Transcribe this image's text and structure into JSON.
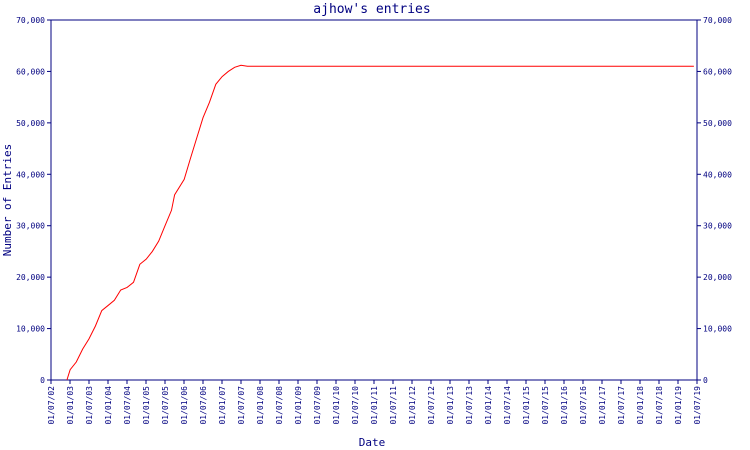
{
  "chart_data": {
    "type": "line",
    "title": "ajhow's entries",
    "xlabel": "Date",
    "ylabel": "Number of Entries",
    "ylim": [
      0,
      70000
    ],
    "yticks": [
      0,
      10000,
      20000,
      30000,
      40000,
      50000,
      60000,
      70000
    ],
    "ytick_labels": [
      "0",
      "10,000",
      "20,000",
      "30,000",
      "40,000",
      "50,000",
      "60,000",
      "70,000"
    ],
    "secondary_y_axis": true,
    "grid": false,
    "x_tick_labels": [
      "01/07/02",
      "01/01/03",
      "01/07/03",
      "01/01/04",
      "01/07/04",
      "01/01/05",
      "01/07/05",
      "01/01/06",
      "01/07/06",
      "01/01/07",
      "01/07/07",
      "01/01/08",
      "01/07/08",
      "01/01/09",
      "01/07/09",
      "01/01/10",
      "01/07/10",
      "01/01/11",
      "01/07/11",
      "01/01/12",
      "01/07/12",
      "01/01/13",
      "01/07/13",
      "01/01/14",
      "01/07/14",
      "01/01/15",
      "01/07/15",
      "01/01/16",
      "01/07/16",
      "01/01/17",
      "01/07/17",
      "01/01/18",
      "01/07/18",
      "01/01/19",
      "01/07/19"
    ],
    "series": [
      {
        "color": "#ff0000",
        "points": [
          [
            "2002-12-01",
            0
          ],
          [
            "2003-01-01",
            2000
          ],
          [
            "2003-03-01",
            3500
          ],
          [
            "2003-05-01",
            6000
          ],
          [
            "2003-07-01",
            8000
          ],
          [
            "2003-09-01",
            10500
          ],
          [
            "2003-11-01",
            13500
          ],
          [
            "2004-01-01",
            14500
          ],
          [
            "2004-03-01",
            15500
          ],
          [
            "2004-05-01",
            17500
          ],
          [
            "2004-07-01",
            18000
          ],
          [
            "2004-09-01",
            19000
          ],
          [
            "2004-11-01",
            22500
          ],
          [
            "2005-01-01",
            23500
          ],
          [
            "2005-03-01",
            25000
          ],
          [
            "2005-05-01",
            27000
          ],
          [
            "2005-07-01",
            30000
          ],
          [
            "2005-09-01",
            33000
          ],
          [
            "2005-10-01",
            36000
          ],
          [
            "2006-01-01",
            39000
          ],
          [
            "2006-03-01",
            43000
          ],
          [
            "2006-05-01",
            47000
          ],
          [
            "2006-07-01",
            51000
          ],
          [
            "2006-09-01",
            54000
          ],
          [
            "2006-11-01",
            57500
          ],
          [
            "2007-01-01",
            59000
          ],
          [
            "2007-03-01",
            60000
          ],
          [
            "2007-05-01",
            60800
          ],
          [
            "2007-07-01",
            61200
          ],
          [
            "2007-09-01",
            61000
          ],
          [
            "2008-01-01",
            61000
          ],
          [
            "2019-06-01",
            61000
          ]
        ]
      }
    ]
  }
}
